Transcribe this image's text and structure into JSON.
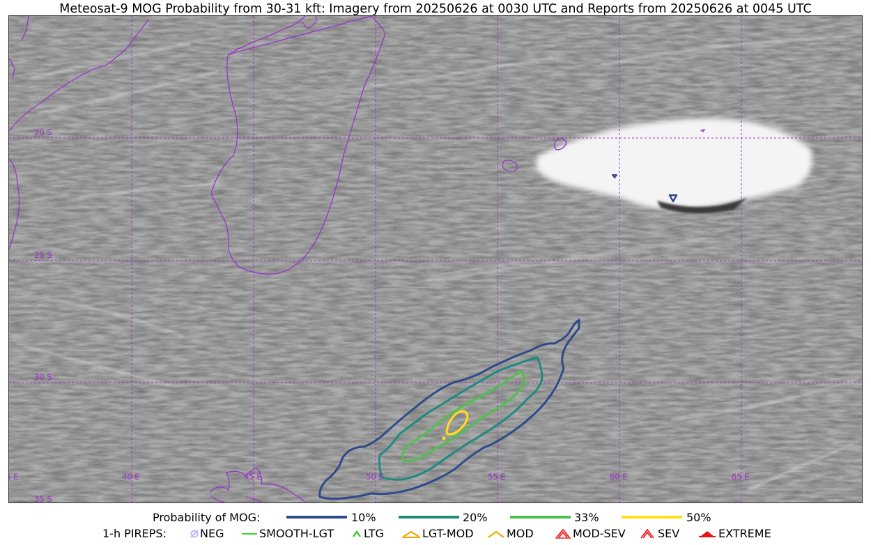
{
  "title": "Meteosat-9 MOG Probability from 30-31 kft: Imagery from 20250626 at 0030 UTC and Reports from 20250626 at 0045 UTC",
  "map": {
    "lat_labels": [
      "20 S",
      "25 S",
      "30 S",
      "35 S"
    ],
    "lon_labels": [
      "35 E",
      "40 E",
      "45 E",
      "50 E",
      "55 E",
      "60 E",
      "65 E"
    ],
    "colors": {
      "coast": "#9933cc",
      "grid": "#9933cc",
      "p10": "#2e4a8a",
      "p20": "#1f8a80",
      "p33": "#4cc24c",
      "p50": "#ffe010"
    }
  },
  "legend": {
    "prob_title": "Probability of MOG:",
    "prob_items": [
      {
        "label": "10%",
        "color": "#2e4a8a"
      },
      {
        "label": "20%",
        "color": "#1f8a80"
      },
      {
        "label": "33%",
        "color": "#4cc24c"
      },
      {
        "label": "50%",
        "color": "#ffe010"
      }
    ],
    "pireps_title": "1-h PIREPS:",
    "pireps_items": [
      {
        "label": "NEG",
        "icon": "neg-icon",
        "color": "#b9b9ff"
      },
      {
        "label": "SMOOTH-LGT",
        "icon": "smooth-lgt-icon",
        "color": "#33dd33"
      },
      {
        "label": "LTG",
        "icon": "ltg-icon",
        "color": "#22cc22"
      },
      {
        "label": "LGT-MOD",
        "icon": "lgt-mod-icon",
        "color": "#f0a800"
      },
      {
        "label": "MOD",
        "icon": "mod-icon",
        "color": "#f0a800"
      },
      {
        "label": "MOD-SEV",
        "icon": "mod-sev-icon",
        "color": "#ee2222"
      },
      {
        "label": "SEV",
        "icon": "sev-icon",
        "color": "#ee2222"
      },
      {
        "label": "EXTREME",
        "icon": "extreme-icon",
        "color": "#ee1111"
      }
    ]
  }
}
